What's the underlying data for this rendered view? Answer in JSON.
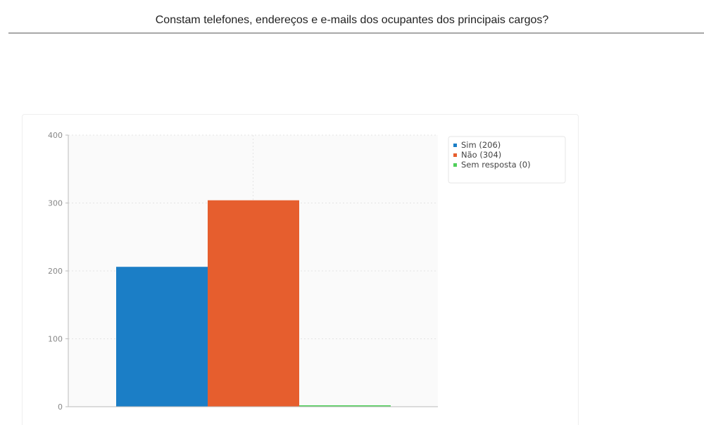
{
  "header": {
    "title": "Constam telefones, endereços e e-mails dos ocupantes dos principais cargos?"
  },
  "chart_data": {
    "type": "bar",
    "categories": [
      "Sim",
      "Não",
      "Sem resposta"
    ],
    "values": [
      206,
      304,
      0
    ],
    "colors": [
      "#1b7ec6",
      "#e65e2e",
      "#4fcf5a"
    ],
    "ylim": [
      0,
      400
    ],
    "yticks": [
      0,
      100,
      200,
      300,
      400
    ],
    "grid": true,
    "legend": {
      "placement": "top-right",
      "entries": [
        "Sim (206)",
        "Não (304)",
        "Sem resposta (0)"
      ]
    }
  }
}
